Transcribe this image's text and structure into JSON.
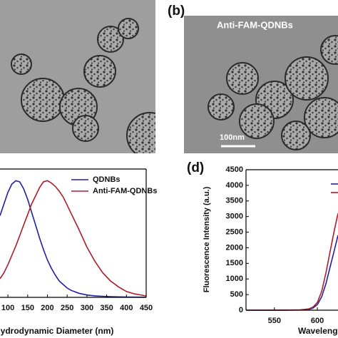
{
  "panels": [
    {
      "label": null,
      "caption": null,
      "scale_bar": null
    },
    {
      "label": "(b)",
      "caption": "Anti-FAM-QDNBs",
      "scale_bar": "100nm"
    }
  ],
  "chart_data": [
    {
      "type": "line",
      "label": null,
      "x_label": "Hydrodynamic Diameter (nm)",
      "x": [
        80,
        90,
        100,
        110,
        120,
        130,
        140,
        150,
        160,
        170,
        180,
        190,
        200,
        210,
        220,
        230,
        240,
        250,
        260,
        280,
        300,
        320,
        340,
        360,
        380,
        400,
        420,
        450
      ],
      "xlim": [
        80,
        450
      ],
      "xticks": [
        100,
        150,
        200,
        250,
        300,
        350,
        400,
        450
      ],
      "ylim": [
        0,
        1.1
      ],
      "series": [
        {
          "name": "QDNBs",
          "color": "#1f1fa8",
          "values": [
            0.7,
            0.8,
            0.9,
            0.97,
            1.0,
            0.99,
            0.93,
            0.84,
            0.73,
            0.62,
            0.51,
            0.41,
            0.32,
            0.25,
            0.19,
            0.14,
            0.11,
            0.08,
            0.06,
            0.035,
            0.02,
            0.013,
            0.009,
            0.006,
            0.004,
            0.003,
            0.002,
            0.001
          ]
        },
        {
          "name": "Anti-FAM-QDNBs",
          "color": "#b01c2a",
          "values": [
            0.16,
            0.21,
            0.28,
            0.36,
            0.44,
            0.53,
            0.62,
            0.71,
            0.8,
            0.87,
            0.94,
            0.99,
            1.0,
            0.98,
            0.95,
            0.91,
            0.86,
            0.79,
            0.72,
            0.58,
            0.43,
            0.31,
            0.21,
            0.14,
            0.09,
            0.05,
            0.03,
            0.012
          ]
        }
      ]
    },
    {
      "type": "line",
      "label": "(d)",
      "x_label": "Wavelength (nm)",
      "y_label": "Fluorescence Intensity (a.u.)",
      "x": [
        517,
        540,
        560,
        580,
        590,
        595,
        600,
        605,
        610,
        615,
        620,
        624
      ],
      "xlim": [
        517,
        624
      ],
      "xticks": [
        550,
        600
      ],
      "ylim": [
        0,
        4500
      ],
      "yticks": [
        0,
        500,
        1000,
        1500,
        2000,
        2500,
        3000,
        3500,
        4000,
        4500
      ],
      "series": [
        {
          "color": "#1f1fa8",
          "values": [
            0,
            0,
            1,
            6,
            25,
            70,
            180,
            430,
            850,
            1400,
            1950,
            2400
          ]
        },
        {
          "color": "#b01c2a",
          "values": [
            0,
            0,
            2,
            10,
            40,
            100,
            250,
            600,
            1200,
            1900,
            2600,
            3100
          ]
        }
      ]
    }
  ]
}
